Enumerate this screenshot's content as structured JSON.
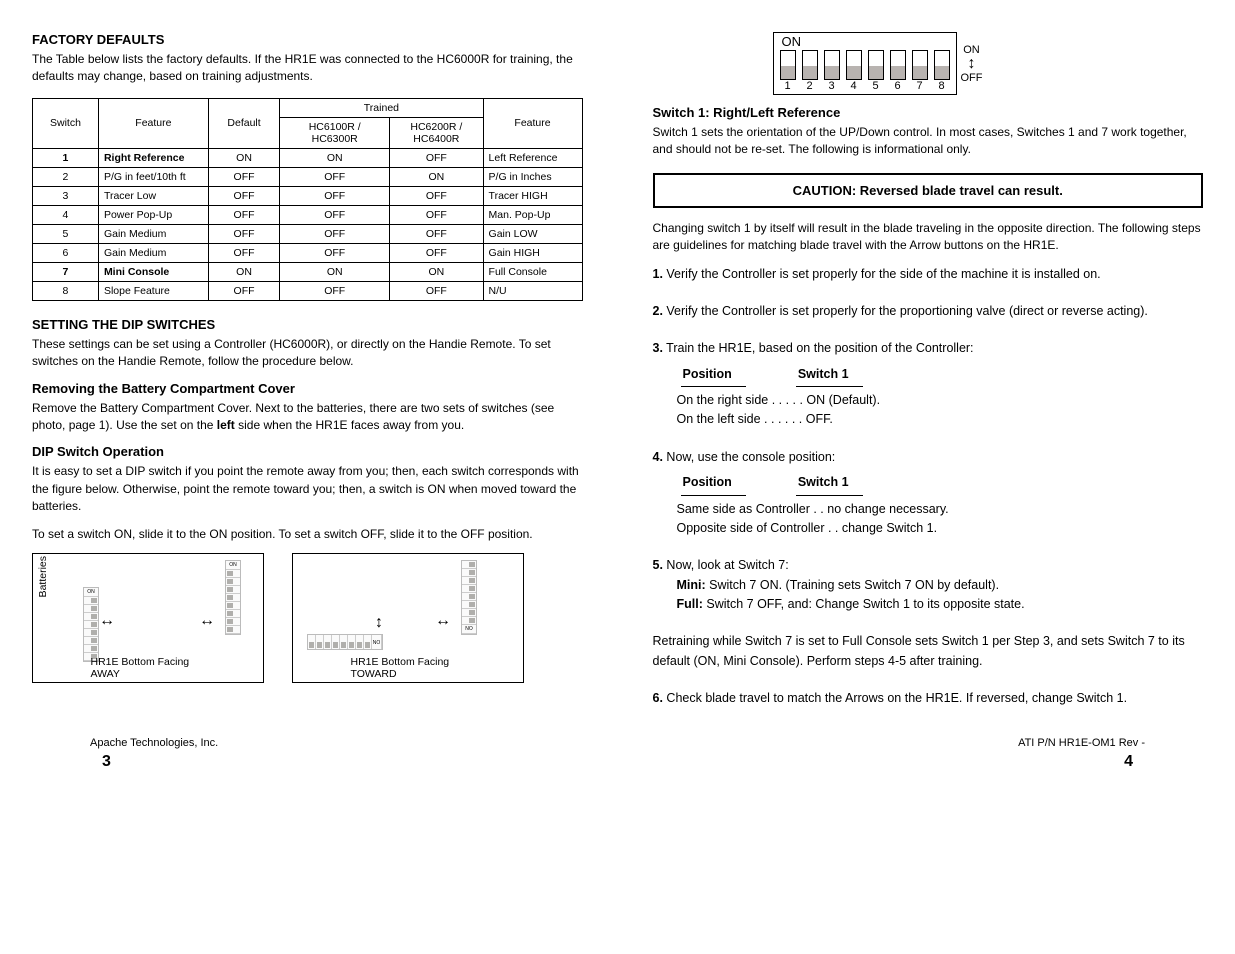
{
  "left": {
    "title1": "FACTORY DEFAULTS",
    "para1": "The Table below lists the factory defaults. If the HR1E was connected to the HC6000R for training, the defaults may change, based on training adjustments.",
    "table": {
      "col_headers_top": [
        "",
        "",
        "",
        "Trained"
      ],
      "col_headers": [
        "Switch",
        "Feature",
        "Default",
        "HC6100R / HC6300R",
        "HC6200R / HC6400R",
        "Feature"
      ],
      "rows": [
        [
          {
            "t": "1",
            "b": true
          },
          {
            "t": "Right Reference",
            "b": true
          },
          "ON",
          "ON",
          "OFF",
          "Left Reference"
        ],
        [
          "2",
          "P/G in feet/10th ft",
          "OFF",
          "OFF",
          "ON",
          "P/G in Inches"
        ],
        [
          "3",
          "Tracer Low",
          "OFF",
          "OFF",
          "OFF",
          "Tracer HIGH"
        ],
        [
          "4",
          "Power Pop-Up",
          "OFF",
          "OFF",
          "OFF",
          "Man. Pop-Up"
        ],
        [
          "5",
          "Gain Medium",
          "OFF",
          "OFF",
          "OFF",
          "Gain LOW"
        ],
        [
          "6",
          "Gain Medium",
          "OFF",
          "OFF",
          "OFF",
          "Gain HIGH"
        ],
        [
          {
            "t": "7",
            "b": true
          },
          {
            "t": "Mini Console",
            "b": true
          },
          "ON",
          "ON",
          "ON",
          "Full Console"
        ],
        [
          "8",
          "Slope Feature",
          "OFF",
          "OFF",
          "OFF",
          "N/U"
        ]
      ]
    },
    "title2": "SETTING THE DIP SWITCHES",
    "para2": "These settings can be set using a Controller (HC6000R), or directly on the Handie Remote. To set switches on the Handie Remote, follow the procedure below.",
    "title3": "Removing the Battery Compartment Cover",
    "para3": "Remove the Battery Compartment Cover. Next to the batteries, there are two sets of switches (see photo, page 1). Use the set on the ",
    "para3_bold": "left",
    "para3_end": " side when the HR1E faces away from you.",
    "title4": "DIP Switch Operation",
    "para4a": "It is easy to set a DIP switch if you point the remote away from you; then, each switch corresponds with the figure below. Otherwise, point the remote toward you; then, a switch is ON when moved toward the batteries.",
    "para4b": "To set a switch ON, slide it to the ON position. To set a switch OFF, slide it to the OFF position.",
    "box1": {
      "y_label": "Batteries",
      "caption": "HR1E Bottom Facing AWAY"
    },
    "box2": {
      "caption": "HR1E Bottom Facing TOWARD"
    }
  },
  "right": {
    "dip": {
      "on_label": "ON",
      "positions": [
        "bot",
        "bot",
        "bot",
        "bot",
        "bot",
        "bot",
        "bot",
        "bot"
      ],
      "nums": [
        "1",
        "2",
        "3",
        "4",
        "5",
        "6",
        "7",
        "8"
      ],
      "side_on": "ON",
      "side_off": "OFF"
    },
    "sw1": {
      "title": "Switch 1: Right/Left Reference",
      "body": "Switch 1 sets the orientation of the UP/Down control. In most cases, Switches 1 and 7 work together, and should not be re-set. The following is informational only."
    },
    "caution": "CAUTION: Reversed blade travel can result.",
    "caution_follow": "Changing switch 1 by itself will result in the blade traveling in the opposite direction. The following steps are guidelines for matching blade travel with the Arrow buttons on the HR1E.",
    "steps": [
      {
        "n": "1.",
        "t": " Verify the Controller is set properly for the side of the machine it is installed on."
      },
      {
        "n": "2.",
        "t": " Verify the Controller is set properly for the proportioning valve (direct or reverse acting)."
      },
      {
        "n": "3.",
        "t": " Train the HR1E, based on the position of the Controller:",
        "subs": [
          "Position",
          "Switch 1"
        ],
        "lines": [
          "On the right side . . . . . ON (Default).",
          "On the left side . . . . . . OFF."
        ]
      },
      {
        "n": "4.",
        "t": " Now, use the console position:",
        "subs": [
          "Position",
          "Switch 1"
        ],
        "lines": [
          "Same side as Controller . . no change necessary.",
          "Opposite side of Controller . . change Switch 1."
        ]
      },
      {
        "n": "5.",
        "t": " Now, look at Switch 7:",
        "lines2": [
          {
            "head": "Mini:",
            "body": " Switch 7 ON. (Training sets Switch 7 ON by default)."
          },
          {
            "head": "Full:",
            "body": " Switch 7 OFF, and: Change Switch 1 to its opposite state."
          }
        ]
      },
      {
        "n": "",
        "t": "Retraining while Switch 7 is set to Full Console sets Switch 1 per Step 3, and sets Switch 7 to its default (ON, Mini Console). Perform steps 4-5 after training."
      },
      {
        "n": "6.",
        "t": " Check blade travel to match the Arrows on the HR1E. If reversed, change Switch 1."
      }
    ]
  },
  "footer": {
    "left_title": "Apache Technologies, Inc.",
    "left_pg": "3",
    "right_doc": "ATI P/N HR1E-OM1 Rev -",
    "right_pg": "4"
  },
  "colors": {
    "page_bg": "#ffffff",
    "text": "#000000",
    "border": "#000000",
    "dip_fill": "#b8b3b0"
  }
}
